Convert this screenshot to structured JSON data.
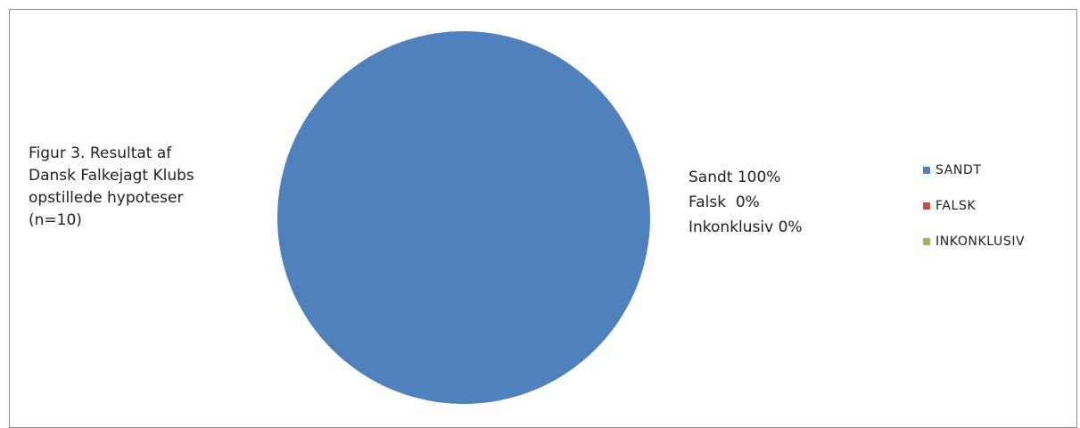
{
  "caption": "Figur 3. Resultat af\nDansk Falkejagt Klubs\nopstillede hypoteser\n(n=10)",
  "slice_labels": [
    "Sandt 100%",
    "Falsk  0%",
    "Inkonklusiv 0%"
  ],
  "chart_data": {
    "type": "pie",
    "categories": [
      "SANDT",
      "FALSK",
      "INKONKLUSIV"
    ],
    "values": [
      100,
      0,
      0
    ],
    "colors": [
      "#4f81bd",
      "#c0504d",
      "#9bbb59"
    ],
    "legend": "right"
  }
}
